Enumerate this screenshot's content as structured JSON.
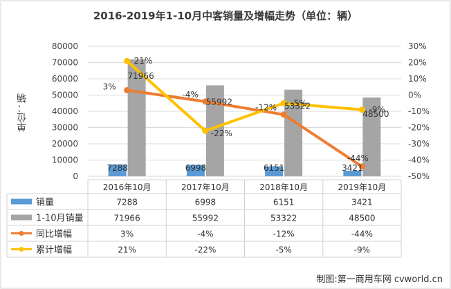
{
  "chart_data": {
    "type": "bar",
    "title": "2016-2019年1-10月中客销量及增幅走势（单位：辆）",
    "ylabel": "单位：辆",
    "categories": [
      "2016年10月",
      "2017年10月",
      "2018年10月",
      "2019年10月"
    ],
    "ylim": [
      0,
      80000
    ],
    "y_ticks": [
      "0",
      "10000",
      "20000",
      "30000",
      "40000",
      "50000",
      "60000",
      "70000",
      "80000"
    ],
    "y2lim": [
      -50,
      30
    ],
    "y2_ticks": [
      "30%",
      "20%",
      "10%",
      "0%",
      "-10%",
      "-20%",
      "-30%",
      "-40%",
      "-50%"
    ],
    "series": [
      {
        "name": "销量",
        "kind": "bar",
        "color": "#5b9bd5",
        "values": [
          7288,
          6998,
          6151,
          3421
        ],
        "labels": [
          "7288",
          "6998",
          "6151",
          "3421"
        ]
      },
      {
        "name": "1-10月销量",
        "kind": "bar",
        "color": "#a5a5a5",
        "values": [
          71966,
          55992,
          53322,
          48500
        ],
        "labels": [
          "71966",
          "55992",
          "53322",
          "48500"
        ]
      },
      {
        "name": "同比增幅",
        "kind": "line",
        "axis": "right",
        "color": "#ed7d31",
        "values": [
          3,
          -4,
          -12,
          -44
        ],
        "labels": [
          "3%",
          "-4%",
          "-12%",
          "-44%"
        ]
      },
      {
        "name": "累计增幅",
        "kind": "line",
        "axis": "right",
        "color": "#ffc000",
        "values": [
          21,
          -22,
          -5,
          -9
        ],
        "labels": [
          "21%",
          "-22%",
          "-5%",
          "-9%"
        ]
      }
    ],
    "grid": true,
    "legend": "data-table"
  },
  "credit": "制图:第一商用车网 cvworld.cn"
}
